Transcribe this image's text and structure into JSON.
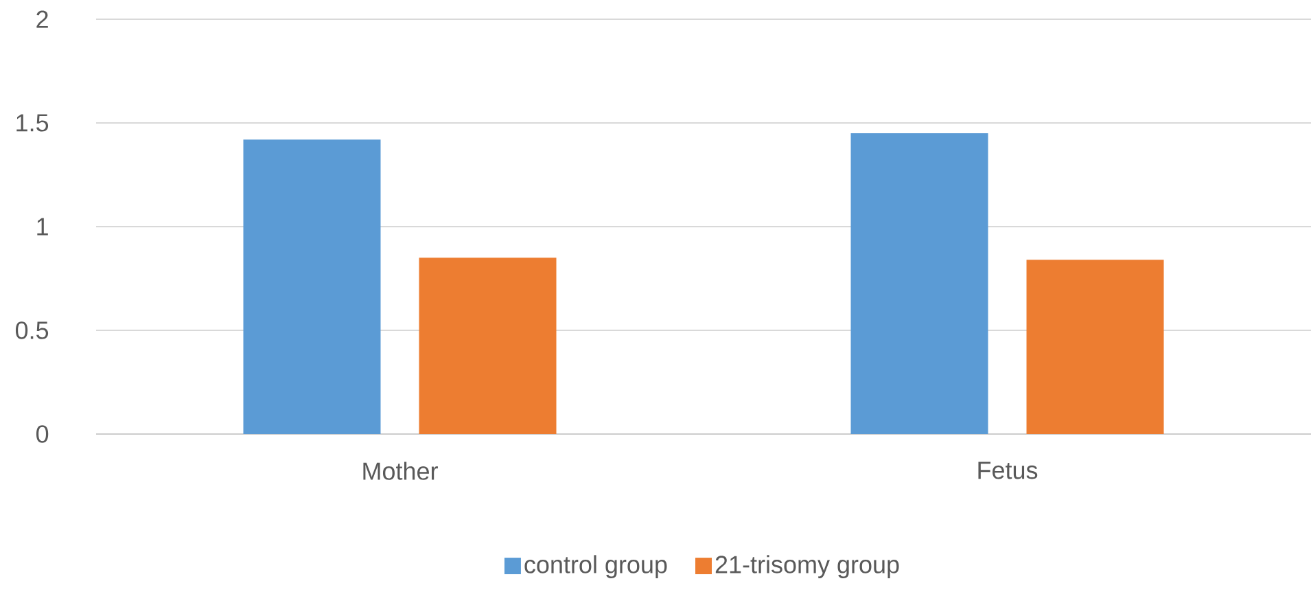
{
  "chart_data": {
    "type": "bar",
    "categories": [
      "Mother",
      "Fetus"
    ],
    "series": [
      {
        "name": "control group",
        "color": "#5b9bd5",
        "values": [
          1.42,
          1.45
        ]
      },
      {
        "name": "21-trisomy group",
        "color": "#ed7d31",
        "values": [
          0.85,
          0.84
        ]
      }
    ],
    "ylim": [
      0,
      2
    ],
    "yticks": [
      0,
      0.5,
      1,
      1.5,
      2
    ],
    "grid": "y",
    "legend": "bottom"
  }
}
